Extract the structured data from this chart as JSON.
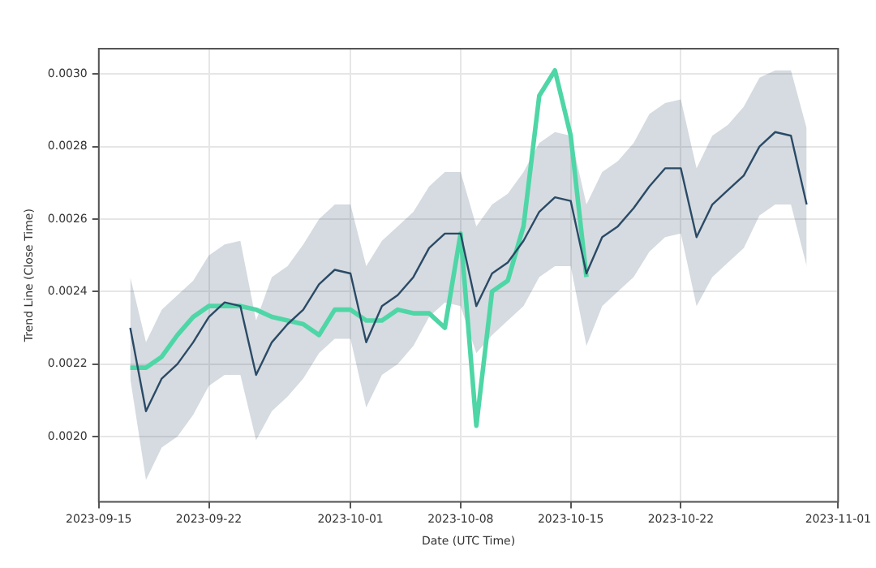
{
  "chart_data": {
    "type": "line",
    "xlabel": "Date (UTC Time)",
    "ylabel": "Trend Line (Close Time)",
    "x": [
      "2023-09-17",
      "2023-09-18",
      "2023-09-19",
      "2023-09-20",
      "2023-09-21",
      "2023-09-22",
      "2023-09-23",
      "2023-09-24",
      "2023-09-25",
      "2023-09-26",
      "2023-09-27",
      "2023-09-28",
      "2023-09-29",
      "2023-09-30",
      "2023-10-01",
      "2023-10-02",
      "2023-10-03",
      "2023-10-04",
      "2023-10-05",
      "2023-10-06",
      "2023-10-07",
      "2023-10-08",
      "2023-10-09",
      "2023-10-10",
      "2023-10-11",
      "2023-10-12",
      "2023-10-13",
      "2023-10-14",
      "2023-10-15",
      "2023-10-16",
      "2023-10-17",
      "2023-10-18",
      "2023-10-19",
      "2023-10-20",
      "2023-10-21",
      "2023-10-22",
      "2023-10-23",
      "2023-10-24",
      "2023-10-25",
      "2023-10-26",
      "2023-10-27",
      "2023-10-28",
      "2023-10-29",
      "2023-10-30"
    ],
    "series": [
      {
        "color": "#2b4a66",
        "values": [
          0.0023,
          0.00207,
          0.00216,
          0.0022,
          0.00226,
          0.00233,
          0.00237,
          0.00236,
          0.00217,
          0.00226,
          0.00231,
          0.00235,
          0.00242,
          0.00246,
          0.00245,
          0.00226,
          0.00236,
          0.00239,
          0.00244,
          0.00252,
          0.00256,
          0.00256,
          0.00236,
          0.00245,
          0.00248,
          0.00254,
          0.00262,
          0.00266,
          0.00265,
          0.00245,
          0.00255,
          0.00258,
          0.00263,
          0.00269,
          0.00274,
          0.00274,
          0.00255,
          0.00264,
          0.00268,
          0.00272,
          0.0028,
          0.00284,
          0.00283,
          0.00264
        ],
        "lower": [
          0.00216,
          0.00188,
          0.00197,
          0.002,
          0.00206,
          0.00214,
          0.00217,
          0.00217,
          0.00199,
          0.00207,
          0.00211,
          0.00216,
          0.00223,
          0.00227,
          0.00227,
          0.00208,
          0.00217,
          0.0022,
          0.00225,
          0.00233,
          0.00237,
          0.00236,
          0.00223,
          0.00228,
          0.00232,
          0.00236,
          0.00244,
          0.00247,
          0.00247,
          0.00225,
          0.00236,
          0.0024,
          0.00244,
          0.00251,
          0.00255,
          0.00256,
          0.00236,
          0.00244,
          0.00248,
          0.00252,
          0.00261,
          0.00264,
          0.00264,
          0.00247
        ],
        "upper": [
          0.00244,
          0.00226,
          0.00235,
          0.00239,
          0.00243,
          0.0025,
          0.00253,
          0.00254,
          0.00232,
          0.00244,
          0.00247,
          0.00253,
          0.0026,
          0.00264,
          0.00264,
          0.00247,
          0.00254,
          0.00258,
          0.00262,
          0.00269,
          0.00273,
          0.00273,
          0.00258,
          0.00264,
          0.00267,
          0.00273,
          0.00281,
          0.00284,
          0.00283,
          0.00264,
          0.00273,
          0.00276,
          0.00281,
          0.00289,
          0.00292,
          0.00293,
          0.00274,
          0.00283,
          0.00286,
          0.00291,
          0.00299,
          0.00301,
          0.00301,
          0.00285
        ]
      },
      {
        "color": "#4fd6a6",
        "values": [
          0.00219,
          0.00219,
          0.00222,
          0.00228,
          0.00233,
          0.00236,
          0.00236,
          0.00236,
          0.00235,
          0.00233,
          0.00232,
          0.00231,
          0.00228,
          0.00235,
          0.00235,
          0.00232,
          0.00232,
          0.00235,
          0.00234,
          0.00234,
          0.0023,
          0.00256,
          0.00203,
          0.0024,
          0.00243,
          0.00258,
          0.00294,
          0.00301,
          0.00283,
          0.00244,
          null,
          null,
          null,
          null,
          null,
          null,
          null,
          null,
          null,
          null,
          null,
          null,
          null,
          null
        ]
      }
    ],
    "xlim": [
      "2023-09-15",
      "2023-11-01"
    ],
    "xticks": [
      "2023-09-15",
      "2023-09-22",
      "2023-10-01",
      "2023-10-08",
      "2023-10-15",
      "2023-10-22",
      "2023-11-01"
    ],
    "ylim": [
      0.00182,
      0.00307
    ],
    "yticks": [
      {
        "value": 0.002,
        "label": "0.0020"
      },
      {
        "value": 0.0022,
        "label": "0.0022"
      },
      {
        "value": 0.0024,
        "label": "0.0024"
      },
      {
        "value": 0.0026,
        "label": "0.0026"
      },
      {
        "value": 0.0028,
        "label": "0.0028"
      },
      {
        "value": 0.003,
        "label": "0.0030"
      }
    ],
    "grid": true,
    "legend": false,
    "marker": "none",
    "line_style": "solid"
  }
}
